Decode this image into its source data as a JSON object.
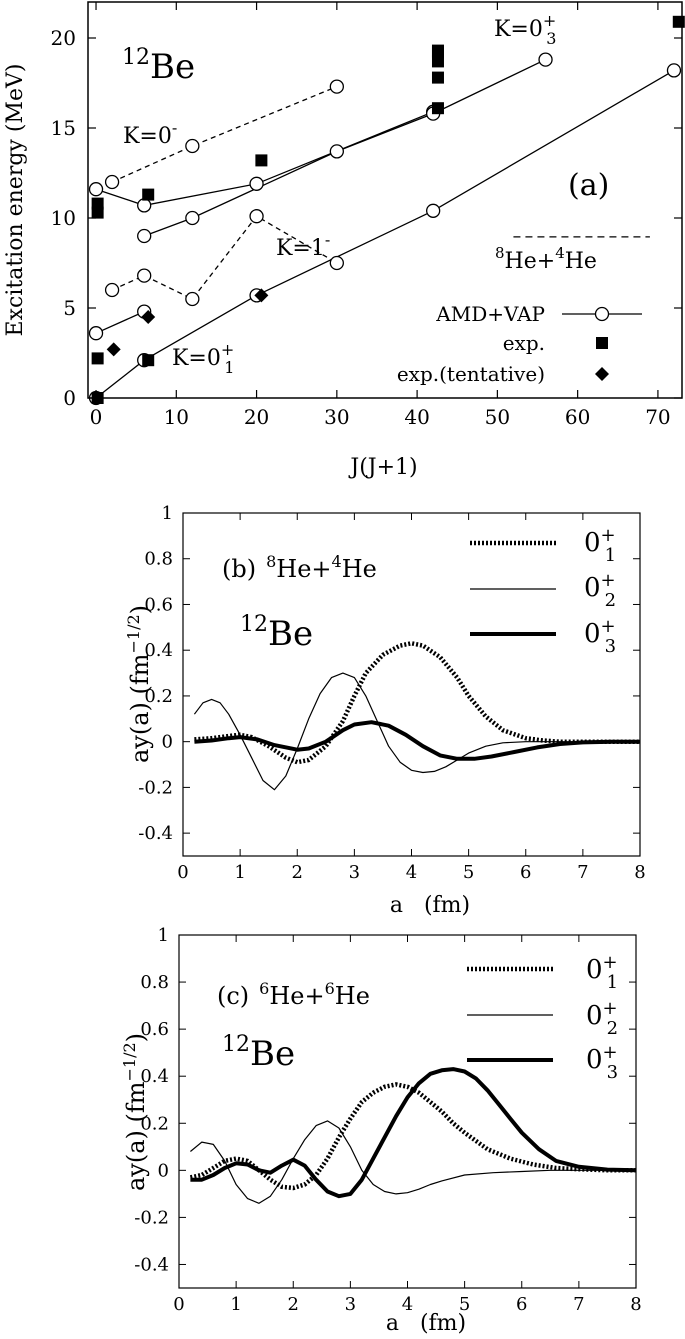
{
  "chart_data": [
    {
      "panel": "a",
      "type": "scatter",
      "nucleus": {
        "mass": "12",
        "symbol": "Be"
      },
      "panel_label": "(a)",
      "xlabel": "J(J+1)",
      "ylabel": "Excitation energy (MeV)",
      "xlim": [
        -1,
        73
      ],
      "ylim": [
        0,
        22
      ],
      "xticks": [
        0,
        10,
        20,
        30,
        40,
        50,
        60,
        70
      ],
      "yticks": [
        0,
        5,
        10,
        15,
        20
      ],
      "threshold": {
        "mass1": "8",
        "name1": "He",
        "plus": "+",
        "mass2": "4",
        "name2": "He",
        "energy": 8.95,
        "x_range": [
          52,
          69
        ]
      },
      "band_labels": [
        {
          "text": "K=0",
          "sup": "-",
          "sub": ""
        },
        {
          "text": "K=1",
          "sup": "-",
          "sub": ""
        },
        {
          "text": "K=0",
          "sup": "+",
          "sub": "1"
        },
        {
          "text": "K=0",
          "sup": "+",
          "sub": "3"
        }
      ],
      "legend": [
        {
          "name": "AMD+VAP",
          "marker": "open-circle"
        },
        {
          "name": "exp.",
          "marker": "filled-square"
        },
        {
          "name": "exp.(tentative)",
          "marker": "filled-diamond"
        }
      ],
      "series": [
        {
          "band": "K=0-",
          "style": "dashed",
          "x": [
            2,
            12,
            30
          ],
          "y": [
            12.0,
            14.0,
            17.3
          ]
        },
        {
          "band": "K=1-",
          "style": "dashed",
          "x": [
            2,
            6,
            12,
            20,
            30
          ],
          "y": [
            6.0,
            6.8,
            5.5,
            10.1,
            7.5
          ]
        },
        {
          "band": "K=0+_1",
          "style": "solid",
          "x": [
            0,
            6,
            20,
            42,
            72
          ],
          "y": [
            0.0,
            2.1,
            5.7,
            10.4,
            18.2
          ]
        },
        {
          "band": "low",
          "style": "solid",
          "x": [
            0,
            6
          ],
          "y": [
            3.6,
            4.8
          ]
        },
        {
          "band": "K=0+_2",
          "style": "solid",
          "x": [
            0,
            6,
            20,
            42
          ],
          "y": [
            11.6,
            10.7,
            11.9,
            15.9
          ]
        },
        {
          "band": "K=0+_3",
          "style": "solid",
          "x": [
            6,
            12,
            30,
            42,
            56
          ],
          "y": [
            9.0,
            10.0,
            13.7,
            15.8,
            18.8
          ]
        }
      ],
      "experimental": {
        "x": [
          0.2,
          0.2,
          0.2,
          0.2,
          6.5,
          6.5,
          20.6,
          42.6,
          42.6,
          42.6,
          42.6,
          42.6,
          72.6
        ],
        "y": [
          0.0,
          2.2,
          10.3,
          10.8,
          2.1,
          11.3,
          13.2,
          16.1,
          17.8,
          18.7,
          19.2,
          19.3,
          20.9
        ]
      },
      "tentative": {
        "x": [
          2.2,
          6.5,
          20.6
        ],
        "y": [
          2.7,
          4.5,
          5.7
        ]
      }
    },
    {
      "panel": "b",
      "type": "line",
      "panel_label": "(b)",
      "channel": {
        "mass1": "8",
        "name1": "He",
        "plus": "+",
        "mass2": "4",
        "name2": "He"
      },
      "nucleus": {
        "mass": "12",
        "symbol": "Be"
      },
      "xlabel": "a   (fm)",
      "ylabel": "ay(a) (fm",
      "ylabel_exp": "−1/2",
      "ylabel_close": ")",
      "xlim": [
        0,
        8
      ],
      "ylim": [
        -0.5,
        1
      ],
      "xticks": [
        0,
        1,
        2,
        3,
        4,
        5,
        6,
        7,
        8
      ],
      "yticks": [
        "-0.4",
        "-0.2",
        "0",
        "0.2",
        "0.4",
        "0.6",
        "0.8",
        "1"
      ],
      "series": [
        {
          "name": "0",
          "sup": "+",
          "sub": "1",
          "style": "dotted-thick",
          "x": [
            0.2,
            0.5,
            0.8,
            1.0,
            1.2,
            1.5,
            1.8,
            2.0,
            2.2,
            2.5,
            2.8,
            3.0,
            3.2,
            3.5,
            3.8,
            4.0,
            4.2,
            4.5,
            4.8,
            5.0,
            5.3,
            5.6,
            6.0,
            6.3,
            6.6,
            7.0,
            7.5,
            8.0
          ],
          "y": [
            0.01,
            0.015,
            0.025,
            0.03,
            0.02,
            -0.02,
            -0.07,
            -0.09,
            -0.08,
            -0.02,
            0.09,
            0.2,
            0.3,
            0.38,
            0.42,
            0.43,
            0.42,
            0.37,
            0.28,
            0.2,
            0.11,
            0.05,
            0.015,
            0.005,
            0.0,
            0.0,
            0.0,
            0.0
          ]
        },
        {
          "name": "0",
          "sup": "+",
          "sub": "2",
          "style": "thin",
          "x": [
            0.2,
            0.35,
            0.5,
            0.65,
            0.8,
            1.0,
            1.2,
            1.4,
            1.6,
            1.8,
            2.0,
            2.2,
            2.4,
            2.6,
            2.8,
            3.0,
            3.2,
            3.4,
            3.6,
            3.8,
            4.0,
            4.2,
            4.4,
            4.6,
            4.8,
            5.0,
            5.3,
            5.6,
            6.0,
            6.5,
            7.0,
            8.0
          ],
          "y": [
            0.12,
            0.17,
            0.185,
            0.17,
            0.12,
            0.03,
            -0.07,
            -0.17,
            -0.21,
            -0.15,
            -0.03,
            0.1,
            0.21,
            0.28,
            0.3,
            0.28,
            0.2,
            0.09,
            -0.02,
            -0.09,
            -0.125,
            -0.135,
            -0.13,
            -0.11,
            -0.08,
            -0.05,
            -0.02,
            -0.005,
            0.0,
            0.0,
            0.0,
            0.0
          ]
        },
        {
          "name": "0",
          "sup": "+",
          "sub": "3",
          "style": "thick",
          "x": [
            0.2,
            0.5,
            0.8,
            1.0,
            1.3,
            1.6,
            2.0,
            2.2,
            2.5,
            2.8,
            3.0,
            3.3,
            3.6,
            3.9,
            4.2,
            4.5,
            4.8,
            5.1,
            5.4,
            5.8,
            6.2,
            6.6,
            7.0,
            7.5,
            8.0
          ],
          "y": [
            0.0,
            0.005,
            0.015,
            0.02,
            0.01,
            -0.015,
            -0.035,
            -0.03,
            0.0,
            0.05,
            0.075,
            0.085,
            0.07,
            0.03,
            -0.02,
            -0.06,
            -0.075,
            -0.075,
            -0.065,
            -0.045,
            -0.025,
            -0.01,
            -0.003,
            0.0,
            0.0
          ]
        }
      ]
    },
    {
      "panel": "c",
      "type": "line",
      "panel_label": "(c)",
      "channel": {
        "mass1": "6",
        "name1": "He",
        "plus": "+",
        "mass2": "6",
        "name2": "He"
      },
      "nucleus": {
        "mass": "12",
        "symbol": "Be"
      },
      "xlabel": "a   (fm)",
      "ylabel": "ay(a) (fm",
      "ylabel_exp": "−1/2",
      "ylabel_close": ")",
      "xlim": [
        0,
        8
      ],
      "ylim": [
        -0.5,
        1
      ],
      "xticks": [
        0,
        1,
        2,
        3,
        4,
        5,
        6,
        7,
        8
      ],
      "yticks": [
        "-0.4",
        "-0.2",
        "0",
        "0.2",
        "0.4",
        "0.6",
        "0.8",
        "1"
      ],
      "series": [
        {
          "name": "0",
          "sup": "+",
          "sub": "1",
          "style": "dotted-thick",
          "x": [
            0.2,
            0.4,
            0.6,
            0.8,
            1.0,
            1.2,
            1.4,
            1.6,
            1.8,
            2.0,
            2.2,
            2.4,
            2.6,
            2.8,
            3.0,
            3.2,
            3.4,
            3.6,
            3.8,
            4.0,
            4.2,
            4.4,
            4.6,
            4.8,
            5.0,
            5.4,
            5.8,
            6.2,
            6.6,
            7.0,
            7.5,
            8.0
          ],
          "y": [
            -0.03,
            -0.02,
            0.01,
            0.04,
            0.05,
            0.04,
            0.0,
            -0.04,
            -0.07,
            -0.075,
            -0.06,
            -0.02,
            0.05,
            0.14,
            0.22,
            0.29,
            0.33,
            0.355,
            0.365,
            0.355,
            0.33,
            0.29,
            0.25,
            0.2,
            0.16,
            0.09,
            0.05,
            0.025,
            0.01,
            0.005,
            0.0,
            0.0
          ]
        },
        {
          "name": "0",
          "sup": "+",
          "sub": "2",
          "style": "thin",
          "x": [
            0.2,
            0.4,
            0.6,
            0.8,
            1.0,
            1.2,
            1.4,
            1.6,
            1.8,
            2.0,
            2.2,
            2.4,
            2.6,
            2.8,
            3.0,
            3.2,
            3.4,
            3.6,
            3.8,
            4.0,
            4.2,
            4.4,
            4.6,
            5.0,
            5.5,
            6.0,
            6.5,
            7.0,
            8.0
          ],
          "y": [
            0.08,
            0.12,
            0.11,
            0.04,
            -0.06,
            -0.12,
            -0.14,
            -0.11,
            -0.04,
            0.05,
            0.13,
            0.19,
            0.21,
            0.18,
            0.1,
            0.0,
            -0.06,
            -0.09,
            -0.1,
            -0.095,
            -0.08,
            -0.06,
            -0.045,
            -0.02,
            -0.01,
            -0.005,
            0.0,
            0.0,
            0.0
          ]
        },
        {
          "name": "0",
          "sup": "+",
          "sub": "3",
          "style": "thick",
          "x": [
            0.2,
            0.4,
            0.6,
            0.8,
            1.0,
            1.2,
            1.4,
            1.6,
            1.8,
            2.0,
            2.2,
            2.4,
            2.6,
            2.8,
            3.0,
            3.2,
            3.4,
            3.6,
            3.8,
            4.0,
            4.2,
            4.4,
            4.6,
            4.8,
            5.0,
            5.2,
            5.4,
            5.6,
            5.8,
            6.0,
            6.3,
            6.6,
            7.0,
            7.5,
            8.0
          ],
          "y": [
            -0.04,
            -0.04,
            -0.02,
            0.01,
            0.03,
            0.025,
            0.0,
            -0.01,
            0.02,
            0.045,
            0.02,
            -0.04,
            -0.09,
            -0.11,
            -0.1,
            -0.04,
            0.05,
            0.14,
            0.23,
            0.31,
            0.37,
            0.41,
            0.425,
            0.43,
            0.42,
            0.39,
            0.34,
            0.28,
            0.22,
            0.16,
            0.09,
            0.04,
            0.015,
            0.003,
            0.0
          ]
        }
      ]
    }
  ]
}
